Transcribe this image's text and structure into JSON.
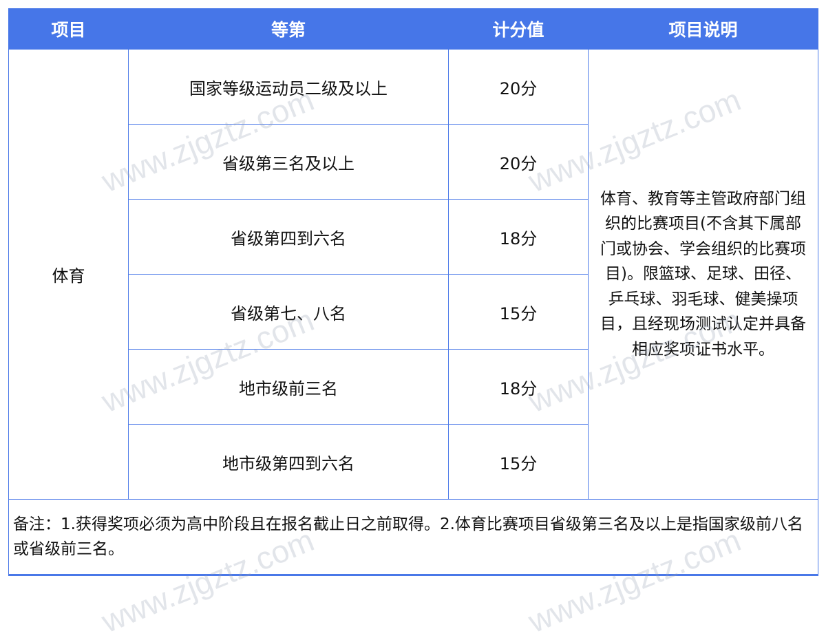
{
  "header": [
    "项目",
    "等第",
    "计分值",
    "项目说明"
  ],
  "category": "体育",
  "rows": [
    {
      "level": "国家等级运动员二级及以上",
      "score": "20分"
    },
    {
      "level": "省级第三名及以上",
      "score": "20分"
    },
    {
      "level": "省级第四到六名",
      "score": "18分"
    },
    {
      "level": "省级第七、八名",
      "score": "15分"
    },
    {
      "level": "地市级前三名",
      "score": "18分"
    },
    {
      "level": "地市级第四到六名",
      "score": "15分"
    }
  ],
  "description": "体育、教育等主管政府部门组织的比赛项目(不含其下属部门或协会、学会组织的比赛项目)。限篮球、足球、田径、乒乓球、羽毛球、健美操项目，且经现场测试认定并具备相应奖项证书水平。",
  "note": "备注：1.获得奖项必须为高中阶段且在报名截止日之前取得。2.体育比赛项目省级第三名及以上是指国家级前八名或省级前三名。",
  "watermark": "www.zjgztz.com",
  "colors": {
    "header_bg": "#4676e8",
    "border": "#4a78e8"
  }
}
